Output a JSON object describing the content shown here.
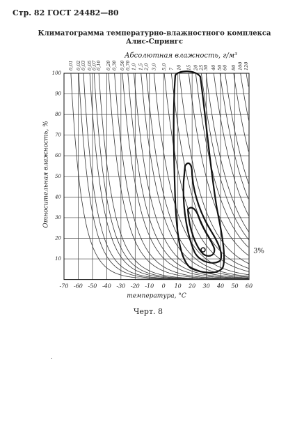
{
  "header": "Стр. 82 ГОСТ 24482—80",
  "figure": {
    "title": "Климатограмма температурно-влажностного комплекса",
    "subtitle": "Алис-Спрингс",
    "top_axis_label": "Абсолютная влажность, г/м³",
    "top_ticks": [
      {
        "value": 0.01,
        "label": "0,01"
      },
      {
        "value": 0.02,
        "label": "0,02"
      },
      {
        "value": 0.03,
        "label": "0,03"
      },
      {
        "value": 0.05,
        "label": "0,05"
      },
      {
        "value": 0.07,
        "label": "0,07"
      },
      {
        "value": 0.1,
        "label": "0,10"
      },
      {
        "value": 0.2,
        "label": "0,20"
      },
      {
        "value": 0.3,
        "label": "0,30"
      },
      {
        "value": 0.5,
        "label": "0,50"
      },
      {
        "value": 0.7,
        "label": "0,70"
      },
      {
        "value": 1,
        "label": "1,0"
      },
      {
        "value": 1.5,
        "label": "1,5"
      },
      {
        "value": 2,
        "label": "2,0"
      },
      {
        "value": 3,
        "label": "3,0"
      },
      {
        "value": 5,
        "label": "5,0"
      },
      7,
      10,
      15,
      20,
      25,
      30,
      40,
      50,
      60,
      80,
      100,
      120
    ],
    "y_label": "Относительная влажность, %",
    "ylim": [
      0,
      100
    ],
    "yticks": [
      10,
      20,
      30,
      40,
      50,
      60,
      70,
      80,
      90,
      100
    ],
    "x_label": "температура, °С",
    "xlim": [
      -70,
      60
    ],
    "xticks": [
      -70,
      -60,
      -50,
      -40,
      -30,
      -20,
      -10,
      0,
      10,
      20,
      30,
      40,
      50,
      60
    ],
    "annotation": "3%"
  },
  "caption": "Черт. 8"
}
